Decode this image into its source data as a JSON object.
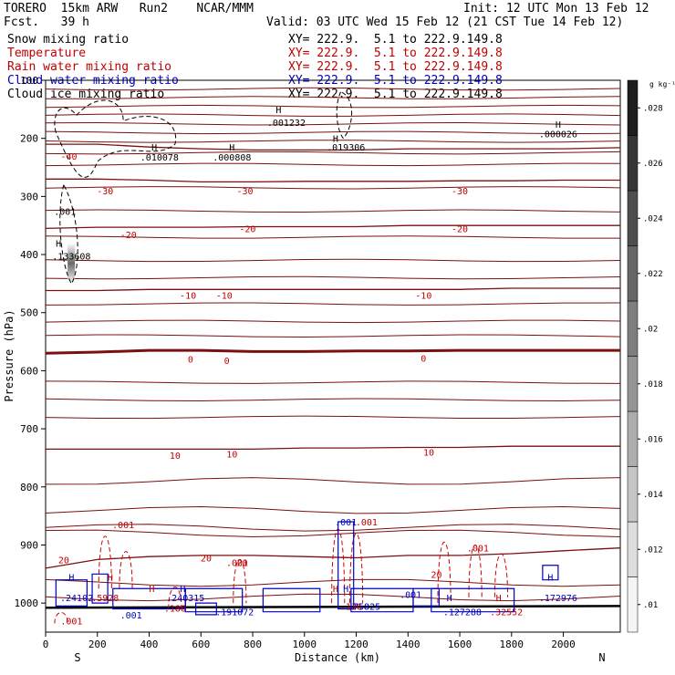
{
  "header": {
    "model": "TORERO  15km ARW   Run2    NCAR/MMM",
    "init": "Init: 12 UTC Mon 13 Feb 12",
    "fcst": "Fcst.   39 h",
    "valid": "Valid: 03 UTC Wed 15 Feb 12 (21 CST Tue 14 Feb 12)"
  },
  "fields": [
    {
      "name": "Snow mixing ratio",
      "xy": "XY= 222.9.  5.1 to 222.9.149.8",
      "color": "#000000"
    },
    {
      "name": "Temperature",
      "xy": "XY= 222.9.  5.1 to 222.9.149.8",
      "color": "#c00000"
    },
    {
      "name": "Rain water mixing ratio",
      "xy": "XY= 222.9.  5.1 to 222.9.149.8",
      "color": "#c00000"
    },
    {
      "name": "Cloud water mixing ratio",
      "xy": "XY= 222.9.  5.1 to 222.9.149.8",
      "color": "#0000c0"
    },
    {
      "name": "Cloud ice mixing ratio",
      "xy": "XY= 222.9.  5.1 to 222.9.149.8",
      "color": "#000000"
    }
  ],
  "chart_data": {
    "type": "line",
    "xlabel": "Distance (km)",
    "ylabel": "Pressure (hPa)",
    "xlim": [
      0,
      2220
    ],
    "ylim": [
      1050,
      100
    ],
    "x_ticks": [
      "0",
      "200",
      "400",
      "600",
      "800",
      "1000",
      "1200",
      "1400",
      "1600",
      "1800",
      "2000"
    ],
    "y_ticks": [
      "100",
      "200",
      "300",
      "400",
      "500",
      "600",
      "700",
      "800",
      "900",
      "1000"
    ],
    "x_endpoints": {
      "left": "S",
      "right": "N"
    },
    "colorbar": {
      "unit": "g kg⁻¹",
      "ticks": [
        ".01",
        ".012",
        ".014",
        ".016",
        ".018",
        ".02",
        ".022",
        ".024",
        ".026",
        ".028"
      ]
    },
    "temperature_isotherms": [
      {
        "label": "-40",
        "p": [
          210,
          210,
          215,
          218,
          220,
          220,
          220,
          218,
          218,
          218,
          218,
          216
        ]
      },
      {
        "label": "-30",
        "p": [
          270,
          270,
          272,
          275,
          275,
          274,
          274,
          274,
          273,
          273,
          272,
          272
        ]
      },
      {
        "label": "-20",
        "p": [
          355,
          353,
          353,
          353,
          352,
          352,
          352,
          350,
          350,
          350,
          350,
          350
        ]
      },
      {
        "label": "-10",
        "p": [
          462,
          462,
          460,
          460,
          460,
          460,
          460,
          460,
          460,
          458,
          458,
          458
        ]
      },
      {
        "label": "0",
        "p": [
          570,
          568,
          565,
          565,
          567,
          567,
          566,
          566,
          565,
          565,
          565,
          565
        ]
      },
      {
        "label": "10",
        "p": [
          735,
          735,
          735,
          735,
          735,
          733,
          733,
          732,
          732,
          730,
          730,
          730
        ]
      },
      {
        "label": "20",
        "p": [
          940,
          925,
          920,
          918,
          918,
          920,
          922,
          918,
          918,
          915,
          910,
          905
        ]
      }
    ],
    "series_x": [
      0,
      200,
      400,
      600,
      800,
      1000,
      1200,
      1400,
      1600,
      1800,
      2000,
      2220
    ],
    "pressure_lines": [
      115,
      130,
      145,
      160,
      175,
      190,
      205,
      225,
      245,
      285,
      325,
      370,
      410,
      440,
      485,
      515,
      540,
      620,
      650,
      680,
      790,
      840,
      870,
      880,
      965,
      990
    ],
    "isotherm_labels": [
      {
        "text": "-40",
        "x": 90,
        "p": 230
      },
      {
        "text": "-30",
        "x": 230,
        "p": 290
      },
      {
        "text": "-30",
        "x": 770,
        "p": 290
      },
      {
        "text": "-30",
        "x": 1600,
        "p": 290
      },
      {
        "text": "-20",
        "x": 320,
        "p": 365
      },
      {
        "text": "-20",
        "x": 780,
        "p": 355
      },
      {
        "text": "-20",
        "x": 1600,
        "p": 355
      },
      {
        "text": "-10",
        "x": 550,
        "p": 470
      },
      {
        "text": "-10",
        "x": 690,
        "p": 470
      },
      {
        "text": "-10",
        "x": 1460,
        "p": 470
      },
      {
        "text": "0",
        "x": 560,
        "p": 580
      },
      {
        "text": "0",
        "x": 700,
        "p": 582
      },
      {
        "text": "0",
        "x": 1460,
        "p": 578
      },
      {
        "text": "10",
        "x": 500,
        "p": 745
      },
      {
        "text": "10",
        "x": 720,
        "p": 743
      },
      {
        "text": "10",
        "x": 1480,
        "p": 740
      },
      {
        "text": "20",
        "x": 70,
        "p": 925
      },
      {
        "text": "20",
        "x": 620,
        "p": 922
      },
      {
        "text": "20",
        "x": 760,
        "p": 930
      },
      {
        "text": "20",
        "x": 1510,
        "p": 950
      }
    ],
    "maxima_labels": [
      {
        "text": ".001232",
        "x": 930,
        "p": 172,
        "color": "#000000"
      },
      {
        "text": ".000026",
        "x": 1980,
        "p": 192,
        "color": "#000000"
      },
      {
        "text": ".010078",
        "x": 440,
        "p": 232,
        "color": "#000000"
      },
      {
        "text": ".000808",
        "x": 720,
        "p": 232,
        "color": "#000000"
      },
      {
        "text": ".019306",
        "x": 1160,
        "p": 215,
        "color": "#000000"
      },
      {
        "text": ".001",
        "x": 75,
        "p": 325,
        "color": "#000000"
      },
      {
        "text": ".133608",
        "x": 100,
        "p": 402,
        "color": "#000000"
      },
      {
        "text": ".001",
        "x": 300,
        "p": 865,
        "color": "#c00000"
      },
      {
        "text": ".001",
        "x": 1160,
        "p": 860,
        "color": "#0000c0"
      },
      {
        "text": ".001",
        "x": 1240,
        "p": 860,
        "color": "#c00000"
      },
      {
        "text": ".001",
        "x": 1670,
        "p": 905,
        "color": "#c00000"
      },
      {
        "text": ".001",
        "x": 740,
        "p": 930,
        "color": "#c00000"
      },
      {
        "text": ".001",
        "x": 1410,
        "p": 985,
        "color": "#0000c0"
      },
      {
        "text": ".001",
        "x": 330,
        "p": 1020,
        "color": "#0000c0"
      },
      {
        "text": ".24102",
        "x": 120,
        "p": 990,
        "color": "#0000c0"
      },
      {
        "text": ".5928",
        "x": 230,
        "p": 990,
        "color": "#c00000"
      },
      {
        "text": ".240315",
        "x": 540,
        "p": 990,
        "color": "#0000c0"
      },
      {
        "text": ".186",
        "x": 500,
        "p": 1008,
        "color": "#c00000"
      },
      {
        "text": ".191072",
        "x": 730,
        "p": 1015,
        "color": "#0000c0"
      },
      {
        "text": ".136",
        "x": 1180,
        "p": 1005,
        "color": "#c00000"
      },
      {
        "text": ".75825",
        "x": 1230,
        "p": 1005,
        "color": "#0000c0"
      },
      {
        "text": ".127288",
        "x": 1610,
        "p": 1015,
        "color": "#0000c0"
      },
      {
        "text": ".32552",
        "x": 1780,
        "p": 1015,
        "color": "#c00000"
      },
      {
        "text": ".172976",
        "x": 1980,
        "p": 990,
        "color": "#0000c0"
      },
      {
        "text": ".001",
        "x": 100,
        "p": 1030,
        "color": "#c00000"
      }
    ],
    "h_marks": [
      {
        "x": 900,
        "p": 150,
        "color": "#000000"
      },
      {
        "x": 1980,
        "p": 175,
        "color": "#000000"
      },
      {
        "x": 420,
        "p": 215,
        "color": "#000000"
      },
      {
        "x": 720,
        "p": 215,
        "color": "#000000"
      },
      {
        "x": 1120,
        "p": 200,
        "color": "#000000"
      },
      {
        "x": 50,
        "p": 380,
        "color": "#000000"
      },
      {
        "x": 100,
        "p": 955,
        "color": "#0000c0"
      },
      {
        "x": 250,
        "p": 955,
        "color": "#c00000"
      },
      {
        "x": 410,
        "p": 975,
        "color": "#c00000"
      },
      {
        "x": 530,
        "p": 975,
        "color": "#0000c0"
      },
      {
        "x": 1120,
        "p": 975,
        "color": "#c00000"
      },
      {
        "x": 1160,
        "p": 975,
        "color": "#0000c0"
      },
      {
        "x": 1560,
        "p": 990,
        "color": "#0000c0"
      },
      {
        "x": 1750,
        "p": 990,
        "color": "#c00000"
      },
      {
        "x": 1950,
        "p": 955,
        "color": "#0000c0"
      }
    ]
  }
}
